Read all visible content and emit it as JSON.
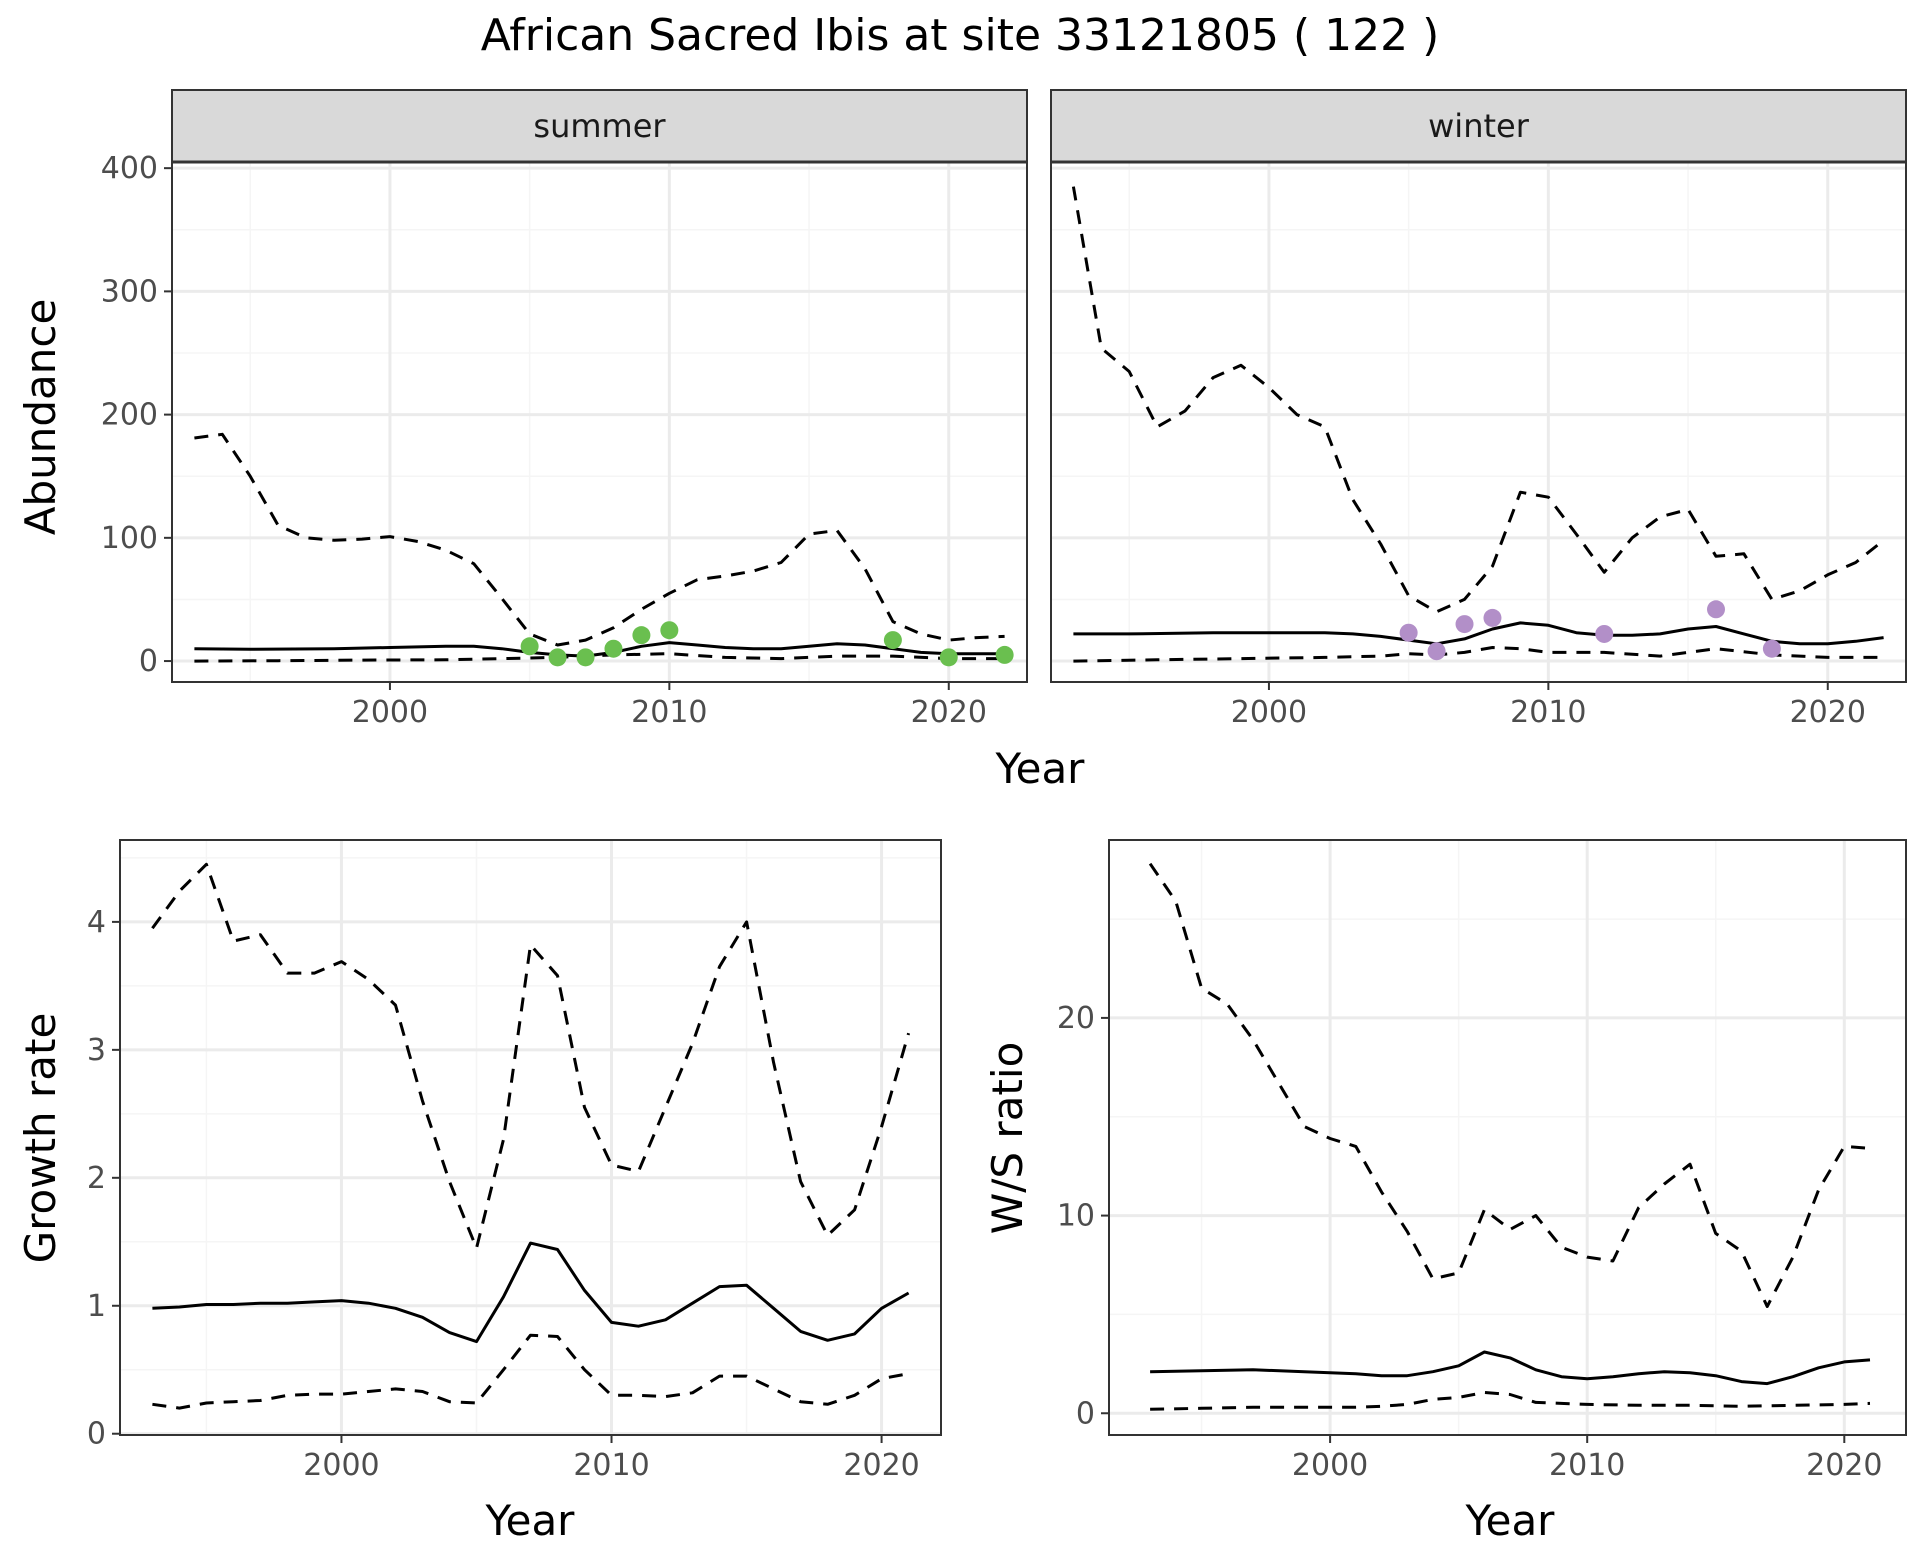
{
  "title": "African Sacred Ibis at site 33121805 ( 122 )",
  "colors": {
    "summer_points": "#6abf4f",
    "winter_points": "#b28fc8",
    "lines": "#000000",
    "strip_fill": "#d9d9d9",
    "grid_major": "#ebebeb",
    "grid_minor": "#f5f5f5"
  },
  "chart_data": [
    {
      "type": "line",
      "panel": "summer",
      "strip": "summer",
      "ylabel": "Abundance",
      "shared_xlabel": "Year",
      "xlim": [
        1992.2,
        2022.8
      ],
      "ylim": [
        -17,
        405
      ],
      "xticks": [
        2000,
        2010,
        2020
      ],
      "yticks": [
        0,
        100,
        200,
        300,
        400
      ],
      "series": [
        {
          "style": "solid",
          "x": [
            1993,
            1995,
            1998,
            2000,
            2002,
            2003,
            2004,
            2005,
            2006,
            2007,
            2008,
            2009,
            2010,
            2011,
            2012,
            2013,
            2014,
            2015,
            2016,
            2017,
            2018,
            2019,
            2020,
            2021,
            2022
          ],
          "y": [
            10,
            9.5,
            10,
            11,
            12,
            12,
            10,
            7,
            5,
            4,
            7,
            12,
            15,
            13,
            11,
            10,
            10,
            12,
            14,
            13,
            10,
            7,
            6,
            6,
            6
          ]
        },
        {
          "style": "dashed",
          "x": [
            1993,
            1994,
            1995,
            1996,
            1997,
            1998,
            1999,
            2000,
            2001,
            2002,
            2003,
            2004,
            2005,
            2006,
            2007,
            2008,
            2009,
            2010,
            2011,
            2012,
            2013,
            2014,
            2015,
            2016,
            2017,
            2018,
            2019,
            2020,
            2021,
            2022
          ],
          "y": [
            181,
            184,
            150,
            110,
            100,
            98,
            99,
            101,
            97,
            90,
            79,
            51,
            22,
            13,
            17,
            27,
            42,
            55,
            66,
            69,
            73,
            80,
            103,
            106,
            75,
            32,
            22,
            17,
            19,
            20
          ]
        },
        {
          "style": "dashed",
          "x": [
            1993,
            1996,
            1999,
            2002,
            2004,
            2006,
            2008,
            2010,
            2012,
            2014,
            2016,
            2018,
            2020,
            2022
          ],
          "y": [
            0,
            0.3,
            0.8,
            1,
            2,
            3,
            5,
            6,
            3,
            2,
            4,
            4,
            2,
            2
          ]
        }
      ],
      "points": {
        "x": [
          2005,
          2006,
          2007,
          2008,
          2009,
          2010,
          2018,
          2020,
          2022
        ],
        "y": [
          12,
          3,
          3,
          10,
          21,
          25,
          17,
          3,
          5
        ]
      }
    },
    {
      "type": "line",
      "panel": "winter",
      "strip": "winter",
      "xlim": [
        1992.2,
        2022.8
      ],
      "ylim": [
        -17,
        405
      ],
      "xticks": [
        2000,
        2010,
        2020
      ],
      "series": [
        {
          "style": "solid",
          "x": [
            1993,
            1995,
            1998,
            2000,
            2002,
            2003,
            2004,
            2005,
            2006,
            2007,
            2008,
            2009,
            2010,
            2011,
            2012,
            2013,
            2014,
            2015,
            2016,
            2017,
            2018,
            2019,
            2020,
            2021,
            2022
          ],
          "y": [
            22,
            22,
            23,
            23,
            23,
            22,
            20,
            17,
            14,
            18,
            26,
            31,
            29,
            23,
            21,
            21,
            22,
            26,
            28,
            22,
            16,
            14,
            14,
            16,
            19
          ]
        },
        {
          "style": "dashed",
          "x": [
            1993,
            1994,
            1995,
            1996,
            1997,
            1998,
            1999,
            2000,
            2001,
            2002,
            2003,
            2004,
            2005,
            2006,
            2007,
            2008,
            2009,
            2010,
            2011,
            2012,
            2013,
            2014,
            2015,
            2016,
            2017,
            2018,
            2019,
            2020,
            2021,
            2022
          ],
          "y": [
            385,
            254,
            235,
            190,
            203,
            230,
            240,
            222,
            200,
            190,
            131,
            95,
            53,
            40,
            50,
            77,
            137,
            133,
            103,
            72,
            100,
            117,
            123,
            85,
            87,
            50,
            57,
            70,
            80,
            98
          ]
        },
        {
          "style": "dashed",
          "x": [
            1993,
            1996,
            1999,
            2002,
            2004,
            2005,
            2006,
            2007,
            2008,
            2009,
            2010,
            2012,
            2014,
            2016,
            2018,
            2020,
            2022
          ],
          "y": [
            0,
            1,
            2,
            3,
            4,
            6,
            5,
            7,
            11,
            10,
            7,
            7,
            4,
            10,
            5,
            3,
            3
          ]
        }
      ],
      "points": {
        "x": [
          2005,
          2006,
          2007,
          2008,
          2012,
          2016,
          2018
        ],
        "y": [
          23,
          8,
          30,
          35,
          22,
          42,
          10
        ]
      }
    },
    {
      "type": "line",
      "panel": "growth",
      "xlabel": "Year",
      "ylabel": "Growth rate",
      "xlim": [
        1991.8,
        2022.2
      ],
      "ylim": [
        -0.01,
        4.64
      ],
      "xticks": [
        2000,
        2010,
        2020
      ],
      "yticks": [
        0,
        1,
        2,
        3,
        4
      ],
      "series": [
        {
          "style": "solid",
          "x": [
            1993,
            1994,
            1995,
            1996,
            1997,
            1998,
            1999,
            2000,
            2001,
            2002,
            2003,
            2004,
            2005,
            2006,
            2007,
            2008,
            2009,
            2010,
            2011,
            2012,
            2013,
            2014,
            2015,
            2016,
            2017,
            2018,
            2019,
            2020,
            2021
          ],
          "y": [
            0.98,
            0.99,
            1.01,
            1.01,
            1.02,
            1.02,
            1.03,
            1.04,
            1.02,
            0.98,
            0.91,
            0.79,
            0.72,
            1.07,
            1.49,
            1.44,
            1.12,
            0.87,
            0.84,
            0.89,
            1.02,
            1.15,
            1.16,
            0.98,
            0.8,
            0.73,
            0.78,
            0.98,
            1.1
          ]
        },
        {
          "style": "dashed",
          "x": [
            1993,
            1994,
            1995,
            1996,
            1997,
            1998,
            1999,
            2000,
            2001,
            2002,
            2003,
            2004,
            2005,
            2006,
            2007,
            2008,
            2009,
            2010,
            2011,
            2012,
            2013,
            2014,
            2015,
            2016,
            2017,
            2018,
            2019,
            2020,
            2021
          ],
          "y": [
            3.95,
            4.24,
            4.45,
            3.85,
            3.9,
            3.6,
            3.6,
            3.69,
            3.55,
            3.35,
            2.6,
            1.97,
            1.45,
            2.3,
            3.82,
            3.58,
            2.55,
            2.1,
            2.05,
            2.55,
            3.05,
            3.65,
            4.0,
            2.9,
            1.97,
            1.55,
            1.75,
            2.4,
            3.13
          ]
        },
        {
          "style": "dashed",
          "x": [
            1993,
            1994,
            1995,
            1996,
            1997,
            1998,
            1999,
            2000,
            2001,
            2002,
            2003,
            2004,
            2005,
            2006,
            2007,
            2008,
            2009,
            2010,
            2011,
            2012,
            2013,
            2014,
            2015,
            2016,
            2017,
            2018,
            2019,
            2020,
            2021
          ],
          "y": [
            0.23,
            0.2,
            0.24,
            0.25,
            0.26,
            0.3,
            0.31,
            0.31,
            0.33,
            0.35,
            0.33,
            0.25,
            0.24,
            0.5,
            0.77,
            0.76,
            0.5,
            0.3,
            0.3,
            0.29,
            0.32,
            0.45,
            0.45,
            0.35,
            0.25,
            0.23,
            0.3,
            0.43,
            0.47
          ]
        }
      ]
    },
    {
      "type": "line",
      "panel": "ratio",
      "xlabel": "Year",
      "ylabel": "W/S ratio",
      "xlim": [
        1991.4,
        2022.4
      ],
      "ylim": [
        -1.1,
        29
      ],
      "xticks": [
        2000,
        2010,
        2020
      ],
      "yticks": [
        0,
        10,
        20
      ],
      "series": [
        {
          "style": "solid",
          "x": [
            1993,
            1995,
            1997,
            1999,
            2001,
            2002,
            2003,
            2004,
            2005,
            2006,
            2007,
            2008,
            2009,
            2010,
            2011,
            2012,
            2013,
            2014,
            2015,
            2016,
            2017,
            2018,
            2019,
            2020,
            2021
          ],
          "y": [
            2.1,
            2.15,
            2.2,
            2.1,
            2,
            1.9,
            1.9,
            2.1,
            2.4,
            3.1,
            2.8,
            2.2,
            1.85,
            1.75,
            1.85,
            2,
            2.1,
            2.05,
            1.9,
            1.6,
            1.5,
            1.85,
            2.3,
            2.6,
            2.7
          ]
        },
        {
          "style": "dashed",
          "x": [
            1993,
            1994,
            1995,
            1996,
            1997,
            1998,
            1999,
            2000,
            2001,
            2002,
            2003,
            2004,
            2005,
            2006,
            2007,
            2008,
            2009,
            2010,
            2011,
            2012,
            2013,
            2014,
            2015,
            2016,
            2017,
            2018,
            2019,
            2020,
            2021
          ],
          "y": [
            27.8,
            25.9,
            21.5,
            20.7,
            18.9,
            16.7,
            14.5,
            13.9,
            13.5,
            11.2,
            9.2,
            6.8,
            7.1,
            10.3,
            9.3,
            10,
            8.4,
            7.9,
            7.7,
            10.4,
            11.6,
            12.6,
            9.1,
            8.2,
            5.4,
            7.9,
            11.3,
            13.5,
            13.4
          ]
        },
        {
          "style": "dashed",
          "x": [
            1993,
            1995,
            1997,
            1999,
            2001,
            2002,
            2003,
            2004,
            2005,
            2006,
            2007,
            2008,
            2010,
            2012,
            2014,
            2016,
            2018,
            2020,
            2021
          ],
          "y": [
            0.2,
            0.25,
            0.3,
            0.3,
            0.3,
            0.35,
            0.45,
            0.7,
            0.8,
            1.05,
            0.95,
            0.55,
            0.45,
            0.4,
            0.4,
            0.35,
            0.4,
            0.45,
            0.5
          ]
        }
      ]
    }
  ]
}
